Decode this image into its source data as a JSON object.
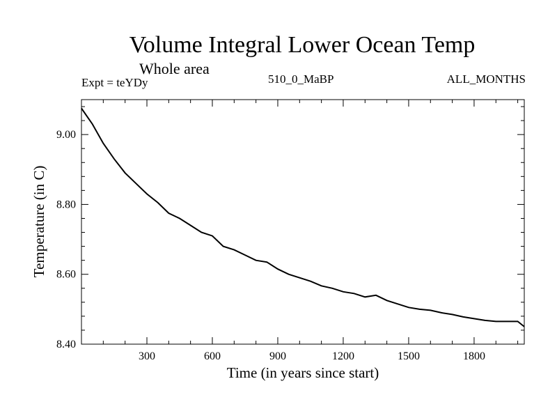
{
  "chart_data": {
    "type": "line",
    "title": "Volume Integral Lower Ocean Temp",
    "subtitle": "Whole area",
    "left_label": "Expt = teYDy",
    "center_label": "510_0_MaBP",
    "right_label": "ALL_MONTHS",
    "xlabel": "Time (in years since start)",
    "ylabel": "Temperature (in C)",
    "xlim": [
      0,
      2030
    ],
    "ylim": [
      8.4,
      9.1
    ],
    "xticks": [
      300,
      600,
      900,
      1200,
      1500,
      1800
    ],
    "xtick_labels": [
      "300",
      "600",
      "900",
      "1200",
      "1500",
      "1800"
    ],
    "yticks": [
      8.4,
      8.6,
      8.8,
      9.0
    ],
    "ytick_labels": [
      "8.40",
      "8.60",
      "8.80",
      "9.00"
    ],
    "series": [
      {
        "name": "Volume Integral Lower Ocean Temp",
        "color": "#000000",
        "x": [
          0,
          50,
          100,
          150,
          200,
          250,
          300,
          350,
          400,
          450,
          500,
          550,
          600,
          650,
          700,
          750,
          800,
          850,
          900,
          950,
          1000,
          1050,
          1100,
          1150,
          1200,
          1250,
          1300,
          1350,
          1400,
          1450,
          1500,
          1550,
          1600,
          1650,
          1700,
          1750,
          1800,
          1850,
          1900,
          1950,
          2000,
          2030
        ],
        "y": [
          9.075,
          9.03,
          8.975,
          8.93,
          8.89,
          8.86,
          8.83,
          8.805,
          8.775,
          8.76,
          8.74,
          8.72,
          8.71,
          8.68,
          8.67,
          8.655,
          8.64,
          8.635,
          8.615,
          8.6,
          8.59,
          8.58,
          8.567,
          8.56,
          8.55,
          8.545,
          8.535,
          8.54,
          8.525,
          8.515,
          8.505,
          8.5,
          8.497,
          8.49,
          8.485,
          8.478,
          8.473,
          8.468,
          8.465,
          8.465,
          8.465,
          8.45
        ]
      }
    ]
  }
}
